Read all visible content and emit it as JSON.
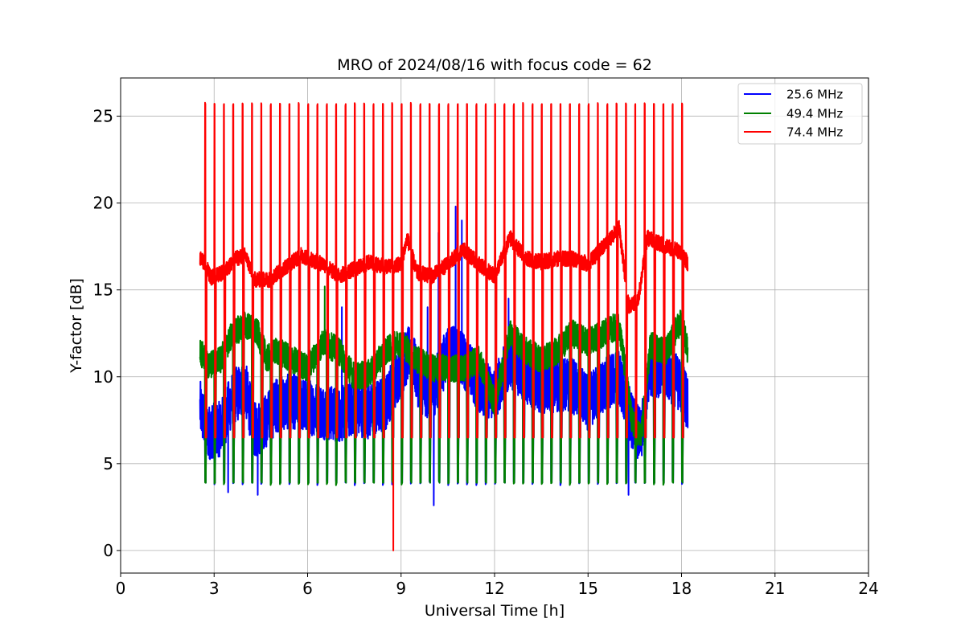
{
  "chart_data": {
    "type": "line",
    "title": "MRO of 2024/08/16 with focus code = 62",
    "xlabel": "Universal Time [h]",
    "ylabel": "Y-factor [dB]",
    "xlim": [
      0,
      24
    ],
    "ylim": [
      -1.3,
      27.2
    ],
    "xticks": [
      0,
      3,
      6,
      9,
      12,
      15,
      18,
      21,
      24
    ],
    "yticks": [
      0,
      5,
      10,
      15,
      20,
      25
    ],
    "grid": true,
    "legend_position": "top-right",
    "calibration": {
      "start": 2.55,
      "end": 18.2,
      "period": 0.3,
      "first_spike": 2.7
    },
    "series": [
      {
        "name": "25.6 MHz",
        "color": "#0000ff",
        "dip_low": 3.9,
        "dip_mid": 6.5,
        "baseline": [
          [
            2.55,
            8.2
          ],
          [
            2.8,
            6.8
          ],
          [
            3.2,
            7.0
          ],
          [
            3.6,
            8.8
          ],
          [
            4.0,
            9.4
          ],
          [
            4.3,
            6.9
          ],
          [
            4.7,
            7.5
          ],
          [
            5.0,
            8.4
          ],
          [
            5.5,
            8.6
          ],
          [
            6.0,
            8.3
          ],
          [
            6.5,
            8.0
          ],
          [
            7.0,
            7.8
          ],
          [
            7.5,
            8.2
          ],
          [
            8.0,
            8.0
          ],
          [
            8.5,
            8.5
          ],
          [
            9.0,
            10.5
          ],
          [
            9.3,
            11.5
          ],
          [
            9.6,
            9.5
          ],
          [
            10.0,
            9.0
          ],
          [
            10.5,
            11.5
          ],
          [
            11.0,
            11.0
          ],
          [
            11.5,
            9.5
          ],
          [
            12.0,
            9.0
          ],
          [
            12.5,
            11.0
          ],
          [
            13.0,
            10.0
          ],
          [
            13.5,
            9.5
          ],
          [
            14.0,
            9.5
          ],
          [
            14.5,
            9.5
          ],
          [
            15.0,
            8.5
          ],
          [
            15.5,
            9.5
          ],
          [
            16.0,
            10.0
          ],
          [
            16.4,
            7.5
          ],
          [
            16.7,
            6.5
          ],
          [
            17.0,
            10.5
          ],
          [
            17.5,
            10.3
          ],
          [
            18.0,
            9.5
          ],
          [
            18.2,
            8.5
          ]
        ],
        "peaks": [
          [
            9.35,
            15.8
          ],
          [
            10.2,
            18.3
          ],
          [
            10.75,
            19.8
          ],
          [
            10.95,
            19.0
          ],
          [
            7.1,
            14.0
          ],
          [
            12.45,
            14.5
          ],
          [
            9.85,
            14.0
          ]
        ],
        "troughs": [
          [
            10.05,
            2.6
          ],
          [
            3.45,
            3.35
          ],
          [
            4.4,
            3.2
          ],
          [
            16.3,
            3.2
          ]
        ]
      },
      {
        "name": "49.4 MHz",
        "color": "#008000",
        "dip_low": 3.9,
        "dip_mid": 6.5,
        "baseline": [
          [
            2.55,
            11.5
          ],
          [
            2.8,
            10.6
          ],
          [
            3.2,
            11.0
          ],
          [
            3.6,
            12.5
          ],
          [
            4.0,
            13.0
          ],
          [
            4.4,
            12.5
          ],
          [
            4.7,
            11.0
          ],
          [
            5.0,
            11.5
          ],
          [
            5.5,
            11.0
          ],
          [
            6.0,
            10.5
          ],
          [
            6.5,
            12.0
          ],
          [
            7.0,
            11.5
          ],
          [
            7.5,
            10.0
          ],
          [
            8.0,
            10.2
          ],
          [
            8.5,
            11.5
          ],
          [
            9.0,
            12.0
          ],
          [
            9.5,
            11.0
          ],
          [
            10.0,
            10.5
          ],
          [
            10.5,
            10.5
          ],
          [
            11.0,
            10.5
          ],
          [
            11.5,
            11.0
          ],
          [
            12.0,
            8.5
          ],
          [
            12.5,
            12.5
          ],
          [
            13.0,
            11.5
          ],
          [
            13.5,
            11.0
          ],
          [
            14.0,
            11.5
          ],
          [
            14.5,
            12.5
          ],
          [
            15.0,
            12.0
          ],
          [
            15.5,
            12.5
          ],
          [
            16.0,
            13.0
          ],
          [
            16.4,
            7.5
          ],
          [
            16.7,
            6.5
          ],
          [
            17.0,
            11.8
          ],
          [
            17.5,
            11.5
          ],
          [
            18.0,
            13.3
          ],
          [
            18.2,
            11.5
          ]
        ],
        "peaks": [
          [
            6.55,
            15.2
          ]
        ],
        "troughs": []
      },
      {
        "name": "74.4 MHz",
        "color": "#ff0000",
        "dip_low": 6.5,
        "dip_mid": 6.5,
        "spike_top": 25.7,
        "baseline": [
          [
            2.55,
            16.8
          ],
          [
            2.7,
            16.5
          ],
          [
            2.9,
            15.7
          ],
          [
            3.3,
            16.0
          ],
          [
            3.7,
            16.8
          ],
          [
            4.0,
            17.0
          ],
          [
            4.3,
            15.6
          ],
          [
            4.8,
            15.6
          ],
          [
            5.2,
            16.2
          ],
          [
            5.8,
            17.0
          ],
          [
            6.0,
            16.8
          ],
          [
            6.5,
            16.5
          ],
          [
            7.0,
            15.8
          ],
          [
            7.5,
            16.2
          ],
          [
            8.0,
            16.6
          ],
          [
            8.5,
            16.3
          ],
          [
            9.0,
            16.5
          ],
          [
            9.2,
            18.0
          ],
          [
            9.5,
            16.0
          ],
          [
            10.0,
            15.8
          ],
          [
            10.5,
            16.5
          ],
          [
            11.0,
            17.3
          ],
          [
            11.5,
            16.5
          ],
          [
            12.0,
            15.8
          ],
          [
            12.5,
            18.0
          ],
          [
            13.0,
            16.8
          ],
          [
            13.5,
            16.6
          ],
          [
            14.0,
            16.8
          ],
          [
            14.5,
            16.8
          ],
          [
            15.0,
            16.5
          ],
          [
            15.5,
            17.5
          ],
          [
            16.0,
            18.6
          ],
          [
            16.3,
            14.1
          ],
          [
            16.6,
            14.3
          ],
          [
            16.9,
            18.0
          ],
          [
            17.5,
            17.5
          ],
          [
            18.0,
            17.2
          ],
          [
            18.2,
            16.5
          ]
        ],
        "peaks": [],
        "troughs": [
          [
            8.75,
            0.0
          ]
        ]
      }
    ]
  }
}
